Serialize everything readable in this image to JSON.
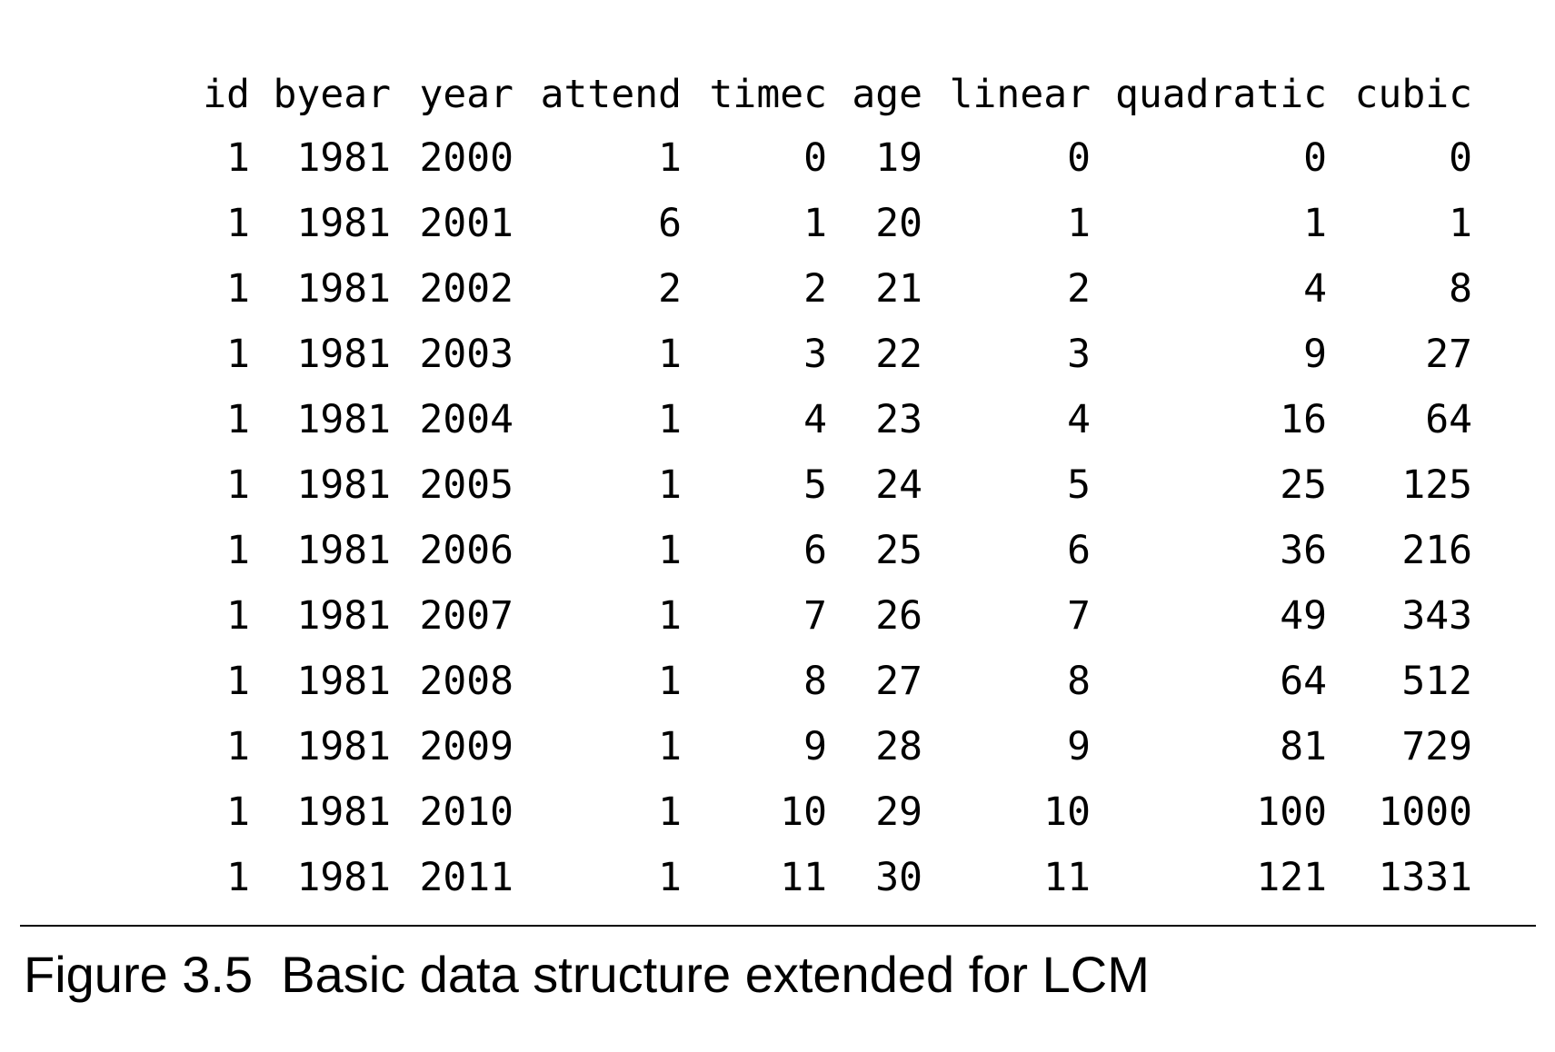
{
  "table": {
    "columns": [
      "id",
      "byear",
      "year",
      "attend",
      "timec",
      "age",
      "linear",
      "quadratic",
      "cubic"
    ],
    "rows": [
      [
        "1",
        "1981",
        "2000",
        "1",
        "0",
        "19",
        "0",
        "0",
        "0"
      ],
      [
        "1",
        "1981",
        "2001",
        "6",
        "1",
        "20",
        "1",
        "1",
        "1"
      ],
      [
        "1",
        "1981",
        "2002",
        "2",
        "2",
        "21",
        "2",
        "4",
        "8"
      ],
      [
        "1",
        "1981",
        "2003",
        "1",
        "3",
        "22",
        "3",
        "9",
        "27"
      ],
      [
        "1",
        "1981",
        "2004",
        "1",
        "4",
        "23",
        "4",
        "16",
        "64"
      ],
      [
        "1",
        "1981",
        "2005",
        "1",
        "5",
        "24",
        "5",
        "25",
        "125"
      ],
      [
        "1",
        "1981",
        "2006",
        "1",
        "6",
        "25",
        "6",
        "36",
        "216"
      ],
      [
        "1",
        "1981",
        "2007",
        "1",
        "7",
        "26",
        "7",
        "49",
        "343"
      ],
      [
        "1",
        "1981",
        "2008",
        "1",
        "8",
        "27",
        "8",
        "64",
        "512"
      ],
      [
        "1",
        "1981",
        "2009",
        "1",
        "9",
        "28",
        "9",
        "81",
        "729"
      ],
      [
        "1",
        "1981",
        "2010",
        "1",
        "10",
        "29",
        "10",
        "100",
        "1000"
      ],
      [
        "1",
        "1981",
        "2011",
        "1",
        "11",
        "30",
        "11",
        "121",
        "1331"
      ]
    ]
  },
  "caption": "Figure 3.5  Basic data structure extended for LCM"
}
